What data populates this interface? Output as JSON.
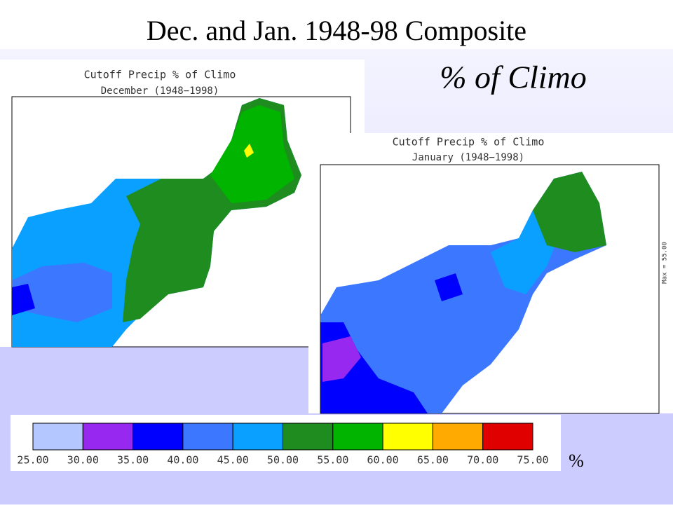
{
  "title": "Dec. and Jan. 1948-98 Composite",
  "subtitle": "% of Climo",
  "maps": [
    {
      "title": "Cutoff Precip % of Climo",
      "period": "December (1948−1998)"
    },
    {
      "title": "Cutoff Precip % of Climo",
      "period": "January (1948−1998)",
      "note": "Max = 55.00"
    }
  ],
  "legend": {
    "labels": [
      "25.00",
      "30.00",
      "35.00",
      "40.00",
      "45.00",
      "50.00",
      "55.00",
      "60.00",
      "65.00",
      "70.00",
      "75.00"
    ],
    "colors": [
      "#b4c8ff",
      "#9628f0",
      "#0000ff",
      "#3c78ff",
      "#0aa0ff",
      "#1e8c1e",
      "#00b400",
      "#ffff00",
      "#ffaa00",
      "#e10000"
    ],
    "unit": "%"
  }
}
